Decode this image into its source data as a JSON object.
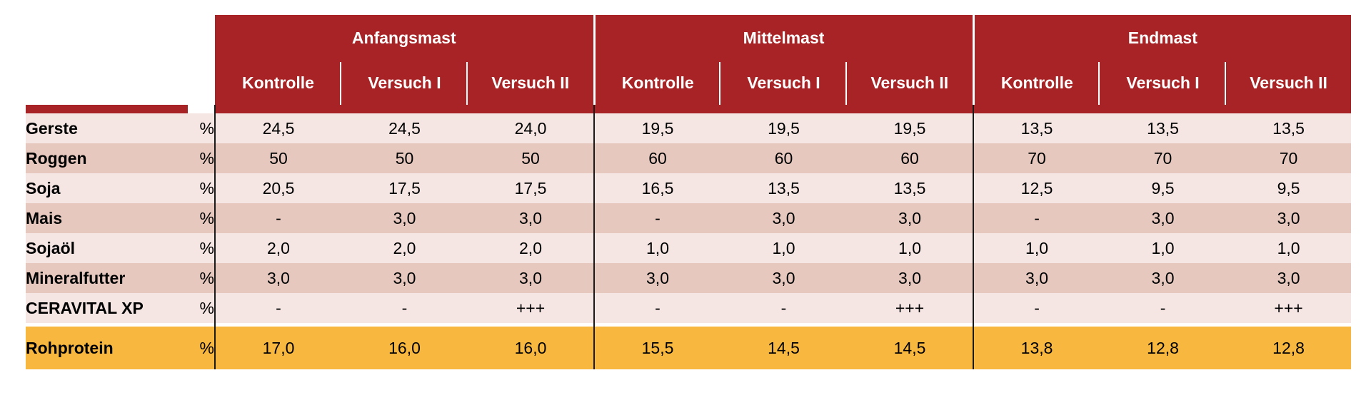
{
  "groups": [
    "Anfangsmast",
    "Mittelmast",
    "Endmast"
  ],
  "subheaders": [
    "Kontrolle",
    "Versuch I",
    "Versuch II",
    "Kontrolle",
    "Versuch I",
    "Versuch II",
    "Kontrolle",
    "Versuch I",
    "Versuch II"
  ],
  "rows": [
    {
      "label": "Gerste",
      "unit": "%",
      "values": [
        "24,5",
        "24,5",
        "24,0",
        "19,5",
        "19,5",
        "19,5",
        "13,5",
        "13,5",
        "13,5"
      ]
    },
    {
      "label": "Roggen",
      "unit": "%",
      "values": [
        "50",
        "50",
        "50",
        "60",
        "60",
        "60",
        "70",
        "70",
        "70"
      ]
    },
    {
      "label": "Soja",
      "unit": "%",
      "values": [
        "20,5",
        "17,5",
        "17,5",
        "16,5",
        "13,5",
        "13,5",
        "12,5",
        "9,5",
        "9,5"
      ]
    },
    {
      "label": "Mais",
      "unit": "%",
      "values": [
        "-",
        "3,0",
        "3,0",
        "-",
        "3,0",
        "3,0",
        "-",
        "3,0",
        "3,0"
      ]
    },
    {
      "label": "Sojaöl",
      "unit": "%",
      "values": [
        "2,0",
        "2,0",
        "2,0",
        "1,0",
        "1,0",
        "1,0",
        "1,0",
        "1,0",
        "1,0"
      ]
    },
    {
      "label": "Mineralfutter",
      "unit": "%",
      "values": [
        "3,0",
        "3,0",
        "3,0",
        "3,0",
        "3,0",
        "3,0",
        "3,0",
        "3,0",
        "3,0"
      ]
    },
    {
      "label": "CERAVITAL XP",
      "unit": "%",
      "values": [
        "-",
        "-",
        "+++",
        "-",
        "-",
        "+++",
        "-",
        "-",
        "+++"
      ]
    }
  ],
  "total": {
    "label": "Rohprotein",
    "unit": "%",
    "values": [
      "17,0",
      "16,0",
      "16,0",
      "15,5",
      "14,5",
      "14,5",
      "13,8",
      "12,8",
      "12,8"
    ]
  },
  "colors": {
    "header": "#a72325",
    "row_light": "#f5e6e3",
    "row_dark": "#e6c8be",
    "total": "#f8b840"
  }
}
